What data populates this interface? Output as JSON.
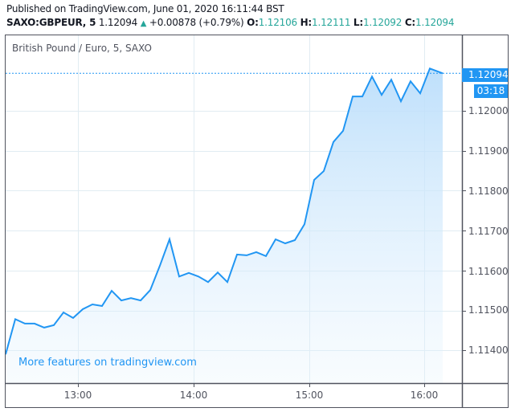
{
  "header": {
    "published": "Published on TradingView.com, June 01, 2020 16:11:44 BST",
    "symbol": "SAXO:GBPEUR, 5",
    "last": "1.12094",
    "change": "+0.00878 (+0.79%)",
    "open_label": "O:",
    "open": "1.12106",
    "high_label": "H:",
    "high": "1.12111",
    "low_label": "L:",
    "low": "1.12092",
    "close_label": "C:",
    "close": "1.12094",
    "up_icon": "triangle-up-icon"
  },
  "legend": {
    "title": "British Pound / Euro, 5, SAXO"
  },
  "watermark": "More features on tradingview.com",
  "price_axis": {
    "labels": [
      "1.12000",
      "1.11900",
      "1.11800",
      "1.11700",
      "1.11600",
      "1.11500",
      "1.11400"
    ],
    "current_price": "1.12094",
    "countdown": "03:18"
  },
  "time_axis": {
    "labels": [
      "13:00",
      "14:00",
      "15:00",
      "16:00"
    ]
  },
  "colors": {
    "line": "#2196f3",
    "area_top": "#bbdefb",
    "grid": "#e1ecf2",
    "up": "#26a69a",
    "axis_text": "#50535e",
    "frame": "#50535e"
  },
  "chart_data": {
    "type": "area",
    "title": "British Pound / Euro, 5, SAXO",
    "symbol": "SAXO:GBPEUR",
    "interval": "5",
    "xlabel": "",
    "ylabel": "",
    "ylim": [
      1.11375,
      1.12205
    ],
    "grid": true,
    "x_ticks": [
      "13:00",
      "14:00",
      "15:00",
      "16:00"
    ],
    "y_ticks": [
      1.114,
      1.115,
      1.116,
      1.117,
      1.118,
      1.119,
      1.12
    ],
    "x": [
      "12:25",
      "12:30",
      "12:35",
      "12:40",
      "12:45",
      "12:50",
      "12:55",
      "13:00",
      "13:05",
      "13:10",
      "13:15",
      "13:20",
      "13:25",
      "13:30",
      "13:35",
      "13:40",
      "13:45",
      "13:50",
      "13:55",
      "14:00",
      "14:05",
      "14:10",
      "14:15",
      "14:20",
      "14:25",
      "14:30",
      "14:35",
      "14:40",
      "14:45",
      "14:50",
      "14:55",
      "15:00",
      "15:05",
      "15:10",
      "15:15",
      "15:20",
      "15:25",
      "15:30",
      "15:35",
      "15:40",
      "15:45",
      "15:50",
      "15:55",
      "16:00",
      "16:05",
      "16:10"
    ],
    "values": [
      1.1139,
      1.11478,
      1.11467,
      1.11467,
      1.11457,
      1.11463,
      1.11495,
      1.11481,
      1.11503,
      1.11515,
      1.11511,
      1.11549,
      1.11525,
      1.11531,
      1.11525,
      1.11551,
      1.11612,
      1.11678,
      1.11585,
      1.11594,
      1.11585,
      1.11571,
      1.11595,
      1.11571,
      1.1164,
      1.11638,
      1.11646,
      1.11636,
      1.11678,
      1.11668,
      1.11676,
      1.11716,
      1.11827,
      1.11849,
      1.11922,
      1.1195,
      1.12036,
      1.12036,
      1.12086,
      1.1204,
      1.12078,
      1.12024,
      1.12074,
      1.12044,
      1.12106,
      1.12094
    ],
    "last_value": 1.12094,
    "countdown": "03:18"
  }
}
